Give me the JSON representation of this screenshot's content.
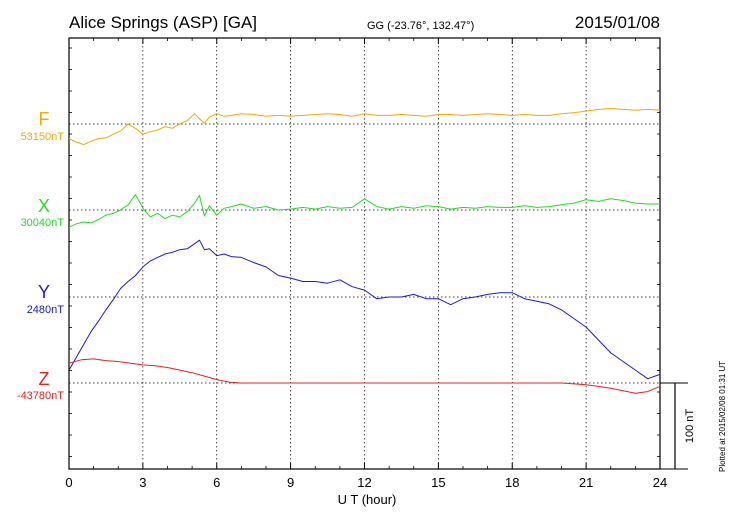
{
  "chart_data": {
    "type": "line",
    "title": "Alice Springs (ASP)  [GA]",
    "subtitle": "GG (-23.76°, 132.47°)",
    "date": "2015/01/08",
    "xlabel": "U T (hour)",
    "xlim": [
      0,
      24
    ],
    "xticks": [
      0,
      3,
      6,
      9,
      12,
      15,
      18,
      21,
      24
    ],
    "grid": true,
    "scale_bar_label": "100 nT",
    "scale_bar_nT": 100,
    "footer": "Plotted at 2015/02/08 01:31  UT",
    "series": [
      {
        "name": "F",
        "baseline_label": "53150nT",
        "baseline_nT": 53150,
        "color": "#f2a900",
        "x": [
          0,
          0.3,
          0.6,
          0.9,
          1.2,
          1.5,
          1.8,
          2.1,
          2.4,
          2.7,
          3.0,
          3.3,
          3.6,
          3.9,
          4.2,
          4.5,
          4.8,
          5.1,
          5.3,
          5.5,
          5.7,
          6.0,
          6.3,
          6.6,
          7.0,
          7.5,
          8.0,
          8.5,
          9.0,
          9.5,
          10.0,
          10.5,
          11.0,
          11.5,
          12.0,
          12.5,
          13.0,
          13.5,
          14.0,
          14.5,
          15.0,
          15.5,
          16.0,
          16.5,
          17.0,
          17.5,
          18.0,
          18.5,
          19.0,
          19.5,
          20.0,
          20.5,
          21.0,
          21.5,
          22.0,
          22.5,
          23.0,
          23.5,
          24.0
        ],
        "y": [
          -17,
          -21,
          -24,
          -20,
          -17,
          -16,
          -12,
          -8,
          0,
          -5,
          -12,
          -9,
          -7,
          -3,
          -5,
          0,
          4,
          12,
          6,
          1,
          8,
          12,
          9,
          10,
          12,
          11,
          9,
          10,
          9,
          10,
          11,
          12,
          11,
          9,
          12,
          10,
          10,
          11,
          10,
          9,
          11,
          11,
          10,
          11,
          12,
          11,
          10,
          11,
          10,
          10,
          12,
          13,
          15,
          17,
          18,
          17,
          16,
          17,
          16
        ]
      },
      {
        "name": "X",
        "baseline_label": "30040nT",
        "baseline_nT": 30040,
        "color": "#22dd22",
        "x": [
          0,
          0.3,
          0.6,
          0.9,
          1.2,
          1.5,
          1.8,
          2.1,
          2.4,
          2.7,
          3.0,
          3.3,
          3.6,
          3.9,
          4.2,
          4.5,
          4.8,
          5.1,
          5.3,
          5.5,
          5.7,
          6.0,
          6.3,
          6.6,
          7.0,
          7.5,
          8.0,
          8.5,
          9.0,
          9.5,
          10.0,
          10.5,
          11.0,
          11.5,
          12.0,
          12.5,
          13.0,
          13.5,
          14.0,
          14.5,
          15.0,
          15.5,
          16.0,
          16.5,
          17.0,
          17.5,
          18.0,
          18.5,
          19.0,
          19.5,
          20.0,
          20.5,
          21.0,
          21.5,
          22.0,
          22.5,
          23.0,
          23.5,
          24.0
        ],
        "y": [
          -20,
          -16,
          -14,
          -15,
          -11,
          -6,
          -4,
          0,
          6,
          18,
          2,
          -8,
          -4,
          -10,
          -6,
          -8,
          -2,
          8,
          17,
          -7,
          5,
          -6,
          2,
          4,
          7,
          2,
          4,
          0,
          1,
          3,
          1,
          4,
          2,
          3,
          13,
          4,
          1,
          4,
          2,
          5,
          4,
          1,
          3,
          2,
          4,
          3,
          3,
          5,
          3,
          4,
          6,
          8,
          12,
          10,
          13,
          11,
          8,
          7,
          7
        ]
      },
      {
        "name": "Y",
        "baseline_label": "2480nT",
        "baseline_nT": 2480,
        "color": "#1a1ad9",
        "x": [
          0,
          0.3,
          0.6,
          0.9,
          1.2,
          1.5,
          1.8,
          2.1,
          2.4,
          2.7,
          3.0,
          3.3,
          3.6,
          3.9,
          4.2,
          4.5,
          4.8,
          5.1,
          5.3,
          5.5,
          5.7,
          6.0,
          6.3,
          6.6,
          7.0,
          7.5,
          8.0,
          8.5,
          9.0,
          9.5,
          10.0,
          10.5,
          11.0,
          11.5,
          12.0,
          12.5,
          13.0,
          13.5,
          14.0,
          14.5,
          15.0,
          15.5,
          16.0,
          16.5,
          17.0,
          17.5,
          18.0,
          18.5,
          19.0,
          19.5,
          20.0,
          20.5,
          21.0,
          21.5,
          22.0,
          22.5,
          23.0,
          23.5,
          24.0
        ],
        "y": [
          -85,
          -70,
          -55,
          -40,
          -28,
          -15,
          -3,
          10,
          18,
          25,
          35,
          42,
          46,
          50,
          52,
          55,
          56,
          62,
          66,
          55,
          56,
          48,
          50,
          47,
          46,
          40,
          35,
          25,
          22,
          18,
          18,
          16,
          20,
          12,
          8,
          -2,
          0,
          0,
          3,
          -2,
          -2,
          -9,
          -2,
          0,
          3,
          5,
          5,
          -2,
          -5,
          -8,
          -15,
          -25,
          -35,
          -50,
          -65,
          -75,
          -85,
          -95,
          -90
        ]
      },
      {
        "name": "Z",
        "baseline_label": "-43780nT",
        "baseline_nT": -43780,
        "color": "#e82020",
        "x": [
          0,
          0.5,
          1.0,
          1.5,
          2.0,
          2.5,
          3.0,
          3.5,
          4.0,
          4.5,
          5.0,
          5.5,
          6.0,
          6.5,
          7.0,
          7.5,
          8.0,
          9.0,
          10.0,
          11.0,
          12.0,
          13.0,
          14.0,
          15.0,
          16.0,
          17.0,
          18.0,
          19.0,
          20.0,
          21.0,
          21.5,
          22.0,
          22.5,
          23.0,
          23.5,
          24.0
        ],
        "y": [
          23,
          27,
          28,
          26,
          25,
          23,
          21,
          20,
          18,
          15,
          12,
          8,
          4,
          1,
          0,
          0,
          0,
          0,
          0,
          0,
          0,
          0,
          0,
          0,
          0,
          0,
          0,
          0,
          0,
          -2,
          -4,
          -6,
          -9,
          -12,
          -10,
          -4
        ]
      }
    ]
  }
}
